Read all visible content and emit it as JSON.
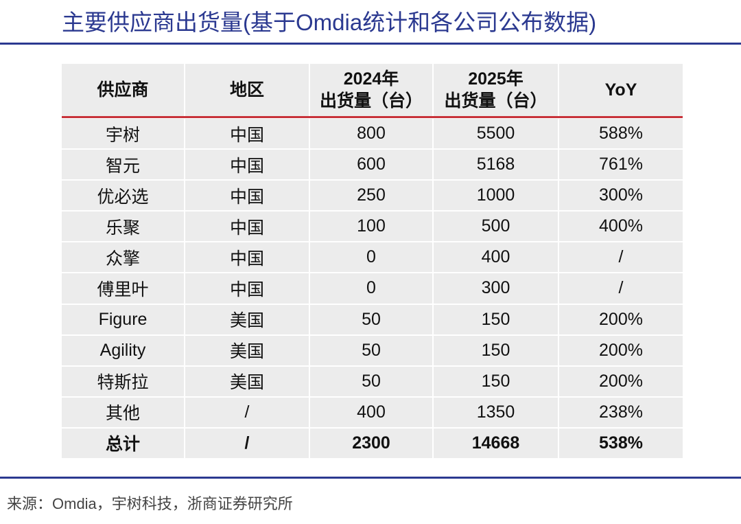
{
  "header": {
    "title": "主要供应商出货量(基于Omdia统计和各公司公布数据)"
  },
  "table": {
    "columns": [
      [
        "供应商"
      ],
      [
        "地区"
      ],
      [
        "2024年",
        "出货量（台）"
      ],
      [
        "2025年",
        "出货量（台）"
      ],
      [
        "YoY"
      ]
    ],
    "rows": [
      [
        "宇树",
        "中国",
        "800",
        "5500",
        "588%"
      ],
      [
        "智元",
        "中国",
        "600",
        "5168",
        "761%"
      ],
      [
        "优必选",
        "中国",
        "250",
        "1000",
        "300%"
      ],
      [
        "乐聚",
        "中国",
        "100",
        "500",
        "400%"
      ],
      [
        "众擎",
        "中国",
        "0",
        "400",
        "/"
      ],
      [
        "傅里叶",
        "中国",
        "0",
        "300",
        "/"
      ],
      [
        "Figure",
        "美国",
        "50",
        "150",
        "200%"
      ],
      [
        "Agility",
        "美国",
        "50",
        "150",
        "200%"
      ],
      [
        "特斯拉",
        "美国",
        "50",
        "150",
        "200%"
      ],
      [
        "其他",
        "/",
        "400",
        "1350",
        "238%"
      ],
      [
        "总计",
        "/",
        "2300",
        "14668",
        "538%"
      ]
    ]
  },
  "footer": {
    "source": "来源：Omdia，宇树科技，浙商证券研究所"
  }
}
